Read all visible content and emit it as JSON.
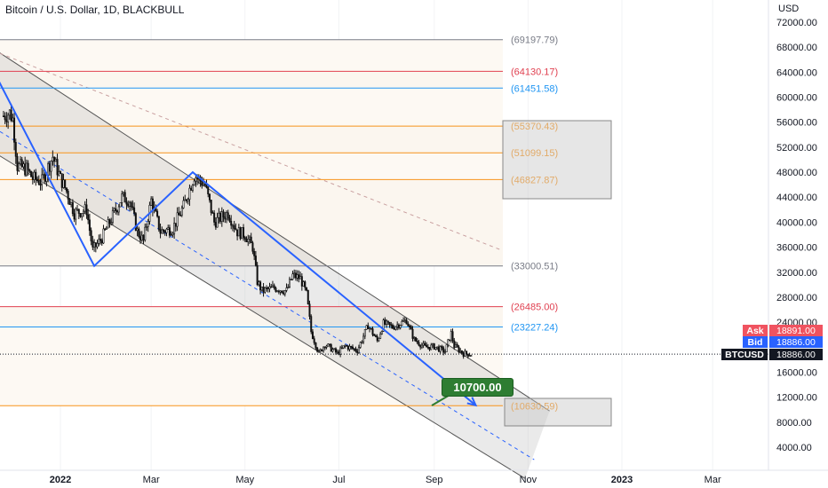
{
  "title": "Bitcoin / U.S. Dollar, 1D, BLACKBULL",
  "currency": "USD",
  "y_ticks": [
    "72000.00",
    "68000.00",
    "64000.00",
    "60000.00",
    "56000.00",
    "52000.00",
    "48000.00",
    "44000.00",
    "40000.00",
    "36000.00",
    "32000.00",
    "28000.00",
    "24000.00",
    "16000.00",
    "12000.00",
    "8000.00",
    "4000.00"
  ],
  "x_ticks": [
    "2022",
    "Mar",
    "May",
    "Jul",
    "Sep",
    "Nov",
    "2023",
    "Mar"
  ],
  "levels": [
    {
      "label": "(69197.79)",
      "value": 69197.79,
      "color": "#787b86"
    },
    {
      "label": "(64130.17)",
      "value": 64130.17,
      "color": "#e04050"
    },
    {
      "label": "(61451.58)",
      "value": 61451.58,
      "color": "#2196f3"
    },
    {
      "label": "(55370.43)",
      "value": 55370.43,
      "color": "#f7931a"
    },
    {
      "label": "(51099.15)",
      "value": 51099.15,
      "color": "#f7931a"
    },
    {
      "label": "(46827.87)",
      "value": 46827.87,
      "color": "#f7931a"
    },
    {
      "label": "(33000.51)",
      "value": 33000.51,
      "color": "#787b86"
    },
    {
      "label": "(26485.00)",
      "value": 26485.0,
      "color": "#e04050"
    },
    {
      "label": "(23227.24)",
      "value": 23227.24,
      "color": "#2196f3"
    },
    {
      "label": "(10630.59)",
      "value": 10630.59,
      "color": "#f7931a"
    }
  ],
  "target_label": "10700.00",
  "price_tags": {
    "ask_label": "Ask",
    "ask_value": "18891.00",
    "bid_label": "Bid",
    "bid_value": "18886.00",
    "symbol": "BTCUSD",
    "last_value": "18886.00"
  },
  "colors": {
    "ask": "#f05360",
    "bid": "#2962ff",
    "last": "#131722",
    "channel": "#d9d9d9",
    "pattern": "#2962ff",
    "target": "#2e7d32"
  },
  "chart_data": {
    "type": "candlestick",
    "title": "Bitcoin / U.S. Dollar, 1D, BLACKBULL",
    "ylabel": "USD",
    "ylim": [
      2000,
      74000
    ],
    "x_range": [
      "2021-11-20",
      "2023-04-05"
    ],
    "last_price": 18886.0,
    "ask": 18891.0,
    "bid": 18886.0,
    "target": 10700.0,
    "price_path": [
      [
        "2021-11-25",
        57000
      ],
      [
        "2021-11-29",
        57500
      ],
      [
        "2021-12-01",
        56500
      ],
      [
        "2021-12-04",
        49000
      ],
      [
        "2021-12-10",
        48500
      ],
      [
        "2021-12-14",
        47000
      ],
      [
        "2021-12-20",
        46500
      ],
      [
        "2021-12-27",
        50500
      ],
      [
        "2022-01-01",
        47000
      ],
      [
        "2022-01-05",
        45000
      ],
      [
        "2022-01-10",
        41500
      ],
      [
        "2022-01-18",
        42000
      ],
      [
        "2022-01-22",
        35500
      ],
      [
        "2022-01-28",
        37500
      ],
      [
        "2022-02-04",
        41000
      ],
      [
        "2022-02-10",
        44000
      ],
      [
        "2022-02-15",
        43500
      ],
      [
        "2022-02-20",
        38500
      ],
      [
        "2022-02-24",
        37000
      ],
      [
        "2022-03-01",
        43500
      ],
      [
        "2022-03-07",
        38500
      ],
      [
        "2022-03-15",
        39000
      ],
      [
        "2022-03-22",
        42500
      ],
      [
        "2022-03-29",
        47500
      ],
      [
        "2022-04-05",
        46000
      ],
      [
        "2022-04-11",
        40000
      ],
      [
        "2022-04-20",
        41500
      ],
      [
        "2022-04-26",
        38500
      ],
      [
        "2022-05-01",
        38000
      ],
      [
        "2022-05-06",
        36000
      ],
      [
        "2022-05-09",
        30500
      ],
      [
        "2022-05-12",
        29000
      ],
      [
        "2022-05-20",
        29500
      ],
      [
        "2022-05-28",
        29000
      ],
      [
        "2022-06-01",
        31500
      ],
      [
        "2022-06-06",
        31000
      ],
      [
        "2022-06-10",
        28500
      ],
      [
        "2022-06-13",
        22500
      ],
      [
        "2022-06-18",
        19000
      ],
      [
        "2022-06-22",
        20500
      ],
      [
        "2022-06-30",
        19000
      ],
      [
        "2022-07-05",
        20200
      ],
      [
        "2022-07-13",
        19500
      ],
      [
        "2022-07-20",
        23500
      ],
      [
        "2022-07-26",
        21000
      ],
      [
        "2022-07-30",
        23800
      ],
      [
        "2022-08-05",
        23200
      ],
      [
        "2022-08-14",
        24300
      ],
      [
        "2022-08-19",
        21200
      ],
      [
        "2022-08-26",
        20000
      ],
      [
        "2022-09-01",
        20100
      ],
      [
        "2022-09-08",
        19300
      ],
      [
        "2022-09-12",
        22200
      ],
      [
        "2022-09-14",
        20200
      ],
      [
        "2022-09-20",
        19000
      ],
      [
        "2022-09-25",
        18886
      ]
    ],
    "pattern_path": [
      [
        "2021-11-20",
        63500
      ],
      [
        "2022-01-23",
        33000
      ],
      [
        "2022-03-28",
        48000
      ],
      [
        "2022-09-28",
        10700
      ]
    ]
  }
}
